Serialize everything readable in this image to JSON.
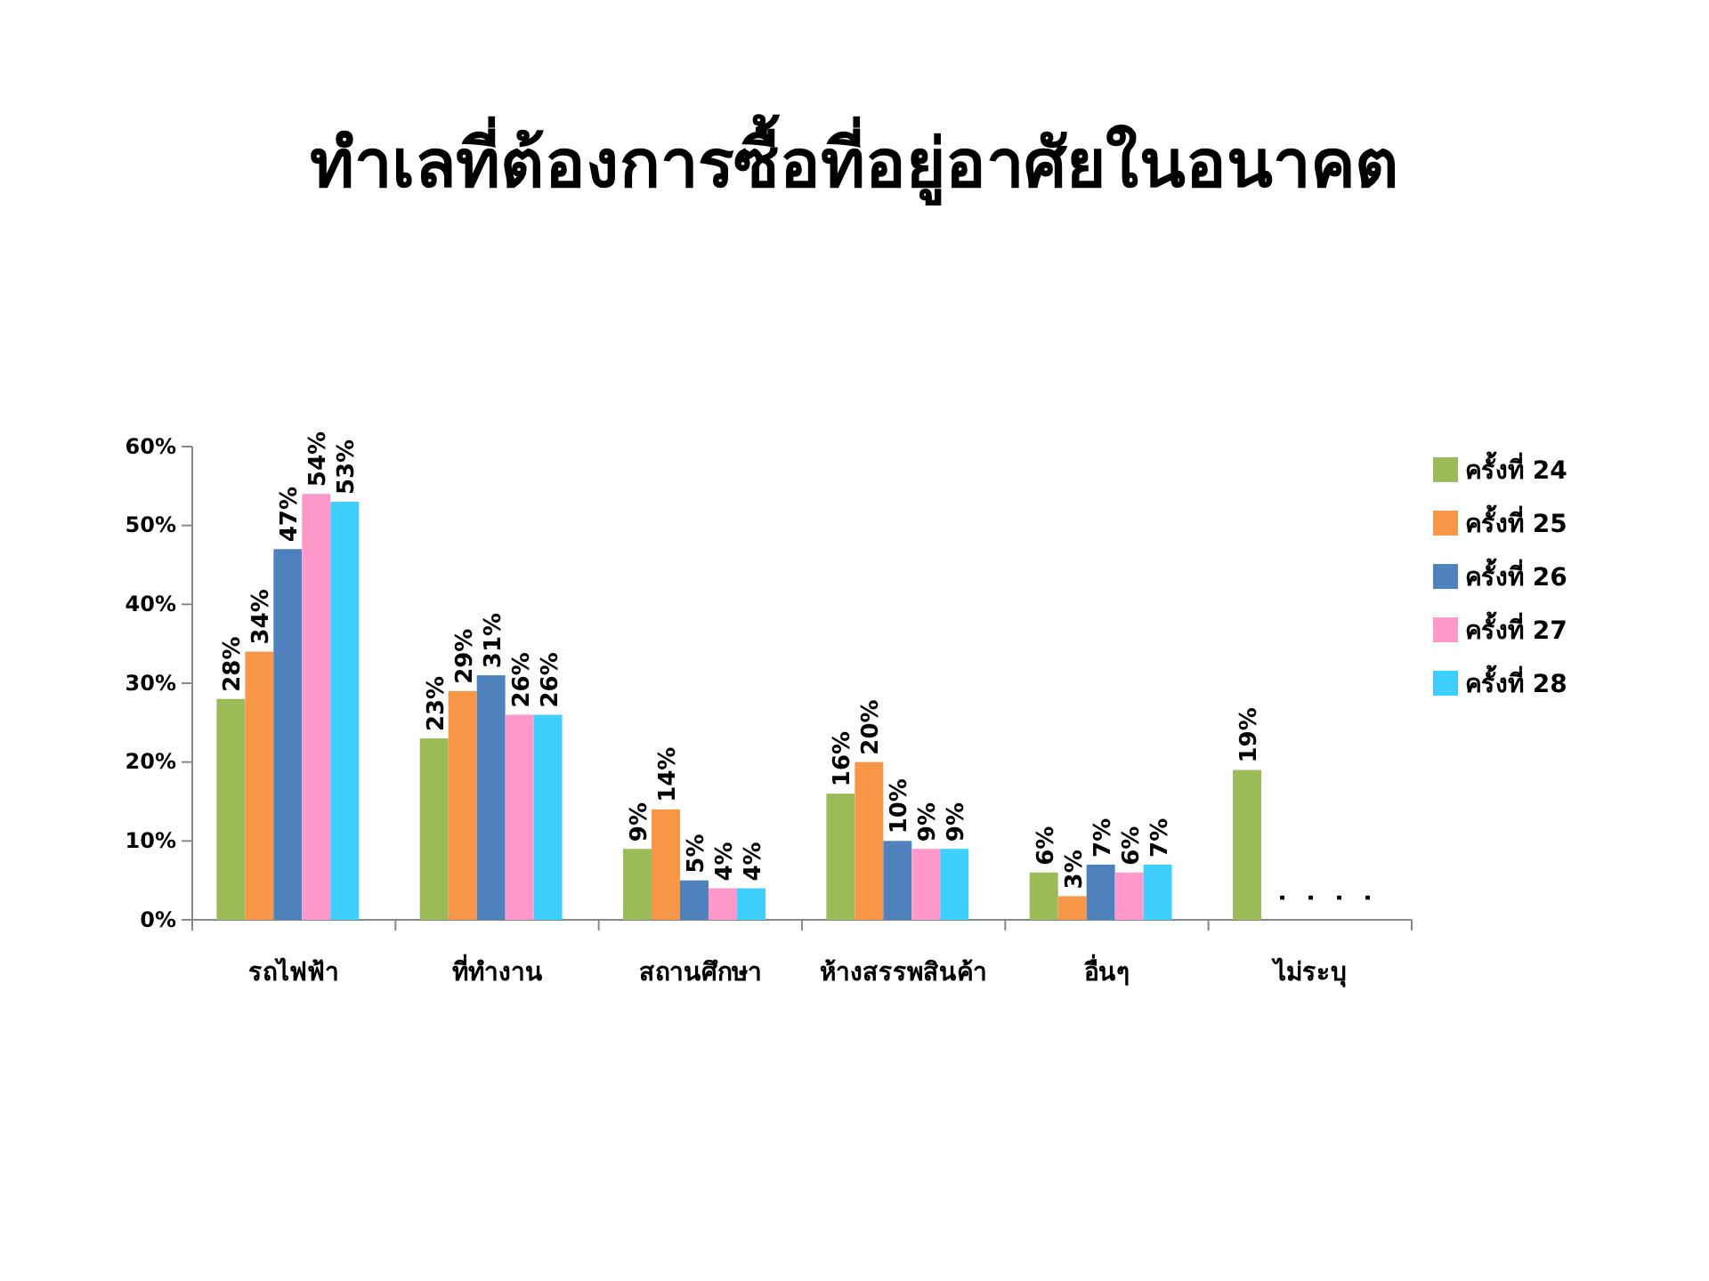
{
  "chart_data": {
    "type": "bar",
    "title": "ทำเลที่ต้องการซื้อที่อยู่อาศัยในอนาคต",
    "categories": [
      "รถไฟฟ้า",
      "ที่ทำงาน",
      "สถานศึกษา",
      "ห้างสรรพสินค้า",
      "อื่นๆ",
      "ไม่ระบุ"
    ],
    "series": [
      {
        "name": "ครั้งที่ 24",
        "color": "#9bbb59",
        "values": [
          28,
          23,
          9,
          16,
          6,
          19
        ],
        "value_labels": [
          "28%",
          "23%",
          "9%",
          "16%",
          "6%",
          "19%"
        ]
      },
      {
        "name": "ครั้งที่ 25",
        "color": "#f79646",
        "values": [
          34,
          29,
          14,
          20,
          3,
          null
        ],
        "value_labels": [
          "34%",
          "29%",
          "14%",
          "20%",
          "3%",
          "."
        ]
      },
      {
        "name": "ครั้งที่ 26",
        "color": "#4f81bd",
        "values": [
          47,
          31,
          5,
          10,
          7,
          null
        ],
        "value_labels": [
          "47%",
          "31%",
          "5%",
          "10%",
          "7%",
          "."
        ]
      },
      {
        "name": "ครั้งที่ 27",
        "color": "#ff99cc",
        "values": [
          54,
          26,
          4,
          9,
          6,
          null
        ],
        "value_labels": [
          "54%",
          "26%",
          "4%",
          "9%",
          "6%",
          "."
        ]
      },
      {
        "name": "ครั้งที่ 28",
        "color": "#3fcfff",
        "values": [
          53,
          26,
          4,
          9,
          7,
          null
        ],
        "value_labels": [
          "53%",
          "26%",
          "4%",
          "9%",
          "7%",
          "."
        ]
      }
    ],
    "ylim": [
      0,
      60
    ],
    "yticks": [
      {
        "value": 0,
        "label": "0%"
      },
      {
        "value": 10,
        "label": "10%"
      },
      {
        "value": 20,
        "label": "20%"
      },
      {
        "value": 30,
        "label": "30%"
      },
      {
        "value": 40,
        "label": "40%"
      },
      {
        "value": 50,
        "label": "50%"
      },
      {
        "value": 60,
        "label": "60%"
      }
    ],
    "grid": false,
    "legend": "right"
  }
}
